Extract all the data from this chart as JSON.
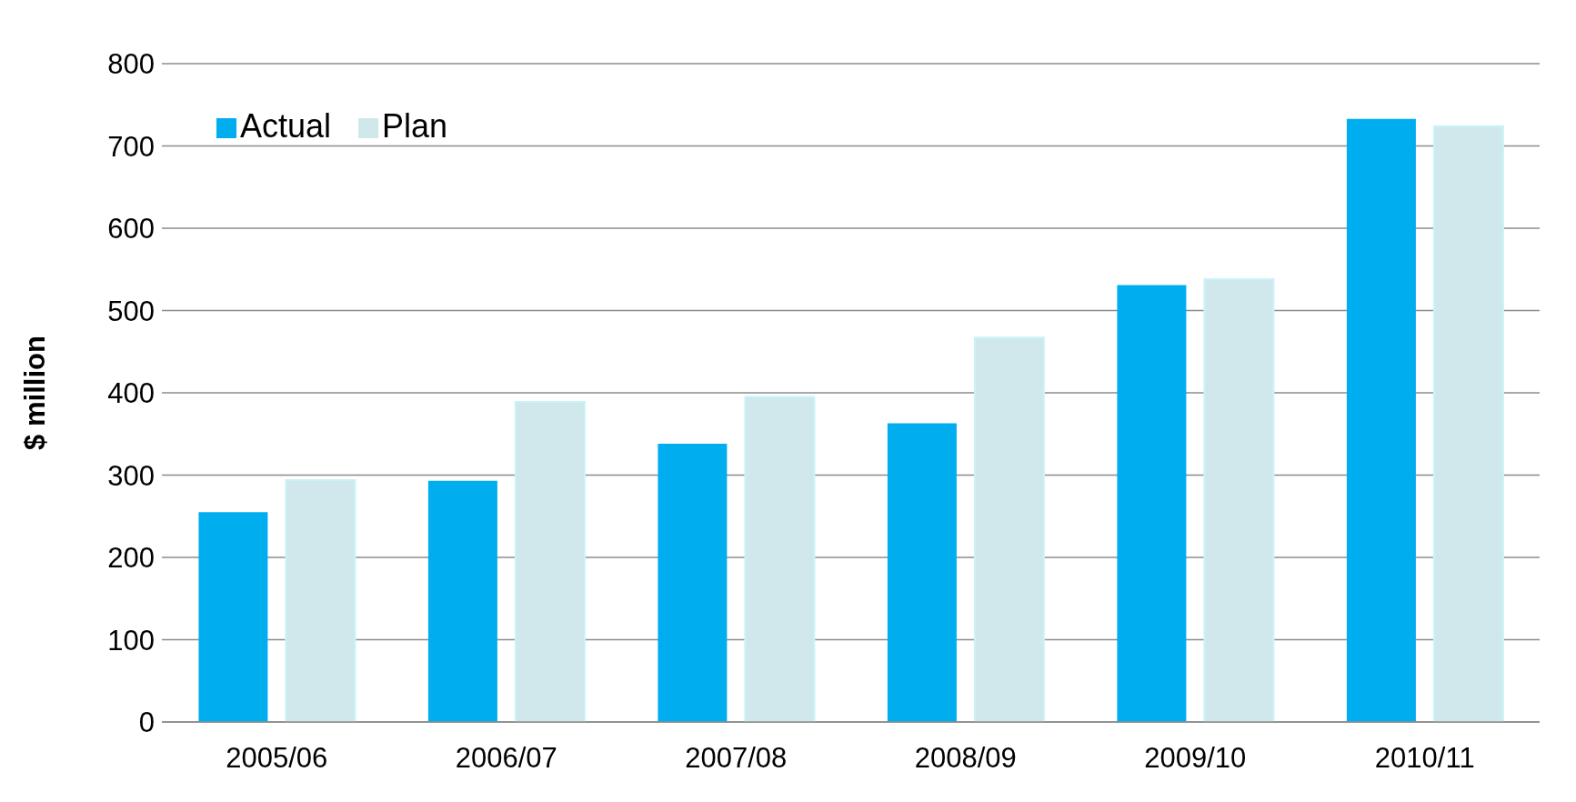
{
  "chart_data": {
    "type": "bar",
    "ylabel": "$ million",
    "categories": [
      "2005/06",
      "2006/07",
      "2007/08",
      "2008/09",
      "2009/10",
      "2010/11"
    ],
    "series": [
      {
        "name": "Actual",
        "color": "#00aeef",
        "values": [
          255,
          293,
          338,
          363,
          531,
          733
        ]
      },
      {
        "name": "Plan",
        "color": "#d0e8ec",
        "values": [
          294,
          389,
          395,
          467,
          538,
          724
        ]
      }
    ],
    "ylim": [
      0,
      800
    ],
    "yticks": [
      0,
      100,
      200,
      300,
      400,
      500,
      600,
      700,
      800
    ],
    "grid": "y",
    "legend": "top left"
  }
}
